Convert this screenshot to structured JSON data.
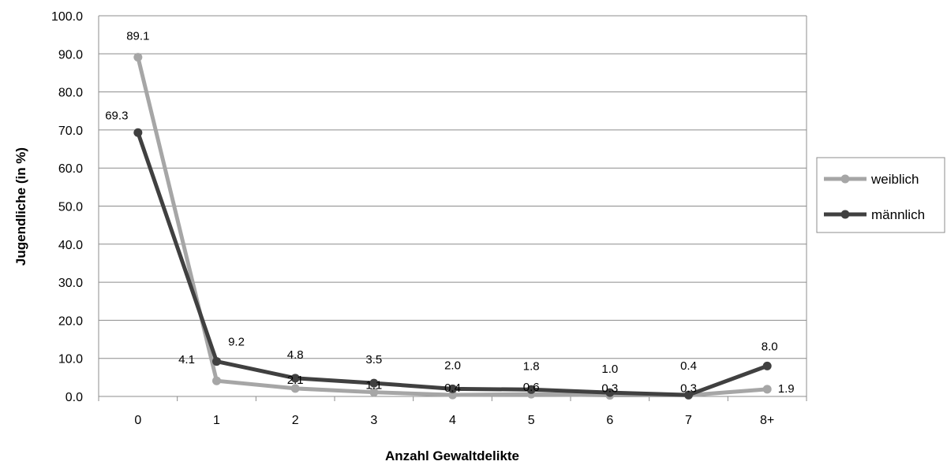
{
  "chart_data": {
    "type": "line",
    "xlabel": "Anzahl Gewaltdelikte",
    "ylabel": "Jugendliche (in %)",
    "categories": [
      "0",
      "1",
      "2",
      "3",
      "4",
      "5",
      "6",
      "7",
      "8+"
    ],
    "ylim": [
      0,
      100
    ],
    "yticks": [
      "0.0",
      "10.0",
      "20.0",
      "30.0",
      "40.0",
      "50.0",
      "60.0",
      "70.0",
      "80.0",
      "90.0",
      "100.0"
    ],
    "grid": true,
    "legend_position": "right",
    "series": [
      {
        "name": "weiblich",
        "color": "#a6a6a6",
        "values": [
          89.1,
          4.1,
          2.1,
          1.1,
          0.4,
          0.6,
          0.3,
          0.3,
          1.9
        ],
        "labels": [
          "89.1",
          "4.1",
          "2.1",
          "1.1",
          "0.4",
          "0.6",
          "0.3",
          "0.3",
          "1.9"
        ]
      },
      {
        "name": "männlich",
        "color": "#404040",
        "values": [
          69.3,
          9.2,
          4.8,
          3.5,
          2.0,
          1.8,
          1.0,
          0.4,
          8.0
        ],
        "labels": [
          "69.3",
          "9.2",
          "4.8",
          "3.5",
          "2.0",
          "1.8",
          "1.0",
          "0.4",
          "8.0"
        ]
      }
    ]
  }
}
